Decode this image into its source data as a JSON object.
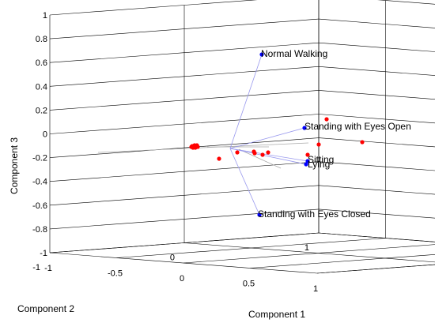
{
  "chart_data": {
    "type": "scatter",
    "title": "",
    "xlabel": "Component 1",
    "ylabel": "Component 2",
    "zlabel": "Component 3",
    "xlim": [
      -1,
      1
    ],
    "ylim": [
      -1,
      1
    ],
    "zlim": [
      -1,
      1
    ],
    "x_ticks": [
      "-1",
      "-0.5",
      "0",
      "0.5",
      "1"
    ],
    "y_ticks": [
      "-1",
      "0",
      "1"
    ],
    "z_ticks": [
      "-1",
      "-0.8",
      "-0.6",
      "-0.4",
      "-0.2",
      "0",
      "0.2",
      "0.4",
      "0.6",
      "0.8",
      "1"
    ],
    "grid": true,
    "colors": {
      "vectors": "#0000ff",
      "vector_lines": "#9999ee",
      "scores": "#ff0000",
      "grid": "#000000"
    },
    "vectors": [
      {
        "label": "Normal Walking"
      },
      {
        "label": "Standing with Eyes Open"
      },
      {
        "label": "Sitting"
      },
      {
        "label": "Lying"
      },
      {
        "label": "Standing with Eyes Closed"
      }
    ]
  }
}
